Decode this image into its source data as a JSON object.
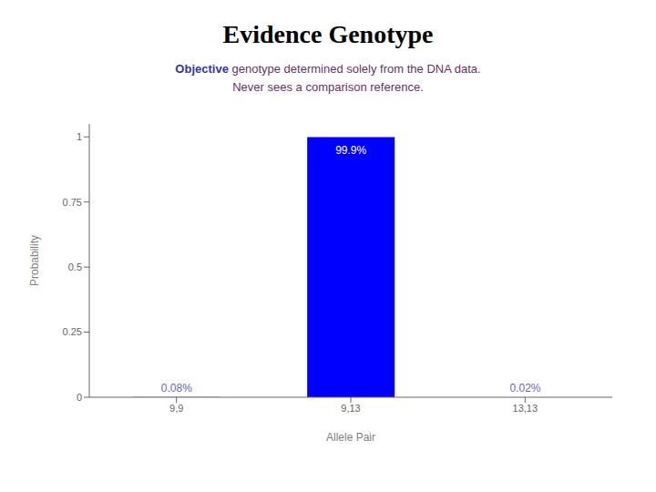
{
  "chart_data": {
    "type": "bar",
    "title": "Evidence Genotype",
    "subtitle": [
      "Objective genotype determined solely from the DNA data.",
      "Never sees a comparison reference."
    ],
    "categories": [
      "9,9",
      "9,13",
      "13,13"
    ],
    "values": [
      0.0008,
      0.999,
      0.0002
    ],
    "value_labels": [
      "0.08%",
      "99.9%",
      "0.02%"
    ],
    "data_labels": true,
    "color": "#0000FF",
    "xlabel": "Allele Pair",
    "ylabel": "Probability",
    "ylim": [
      0,
      1.05
    ],
    "yticks": [
      0,
      0.25,
      0.5,
      0.75,
      1
    ],
    "grid": false
  }
}
